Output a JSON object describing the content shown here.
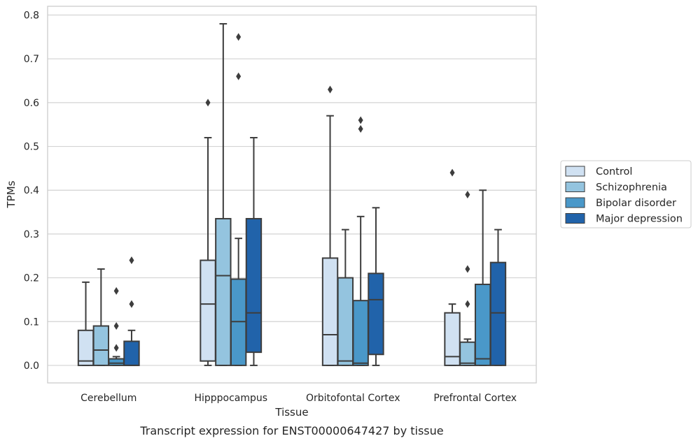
{
  "chart_data": {
    "type": "box",
    "caption": "Transcript expression for ENST00000647427 by tissue",
    "xlabel": "Tissue",
    "ylabel": "TPMs",
    "ylim": [
      -0.04,
      0.82
    ],
    "yticks": [
      "0.0",
      "0.1",
      "0.2",
      "0.3",
      "0.4",
      "0.5",
      "0.6",
      "0.7",
      "0.8"
    ],
    "grid": true,
    "legend_position": "right",
    "categories": [
      "Cerebellum",
      "Hipppocampus",
      "Orbitofontal Cortex",
      "Prefrontal Cortex"
    ],
    "series": [
      {
        "name": "Control",
        "color": "#d0e1f2",
        "boxes": [
          {
            "whislo": 0.0,
            "q1": 0.0,
            "med": 0.01,
            "q3": 0.08,
            "whishi": 0.19,
            "fliers": []
          },
          {
            "whislo": 0.0,
            "q1": 0.01,
            "med": 0.14,
            "q3": 0.24,
            "whishi": 0.52,
            "fliers": [
              0.6
            ]
          },
          {
            "whislo": 0.0,
            "q1": 0.0,
            "med": 0.07,
            "q3": 0.245,
            "whishi": 0.57,
            "fliers": [
              0.63
            ]
          },
          {
            "whislo": 0.0,
            "q1": 0.0,
            "med": 0.02,
            "q3": 0.12,
            "whishi": 0.14,
            "fliers": [
              0.44
            ]
          }
        ]
      },
      {
        "name": "Schizophrenia",
        "color": "#94c4df",
        "boxes": [
          {
            "whislo": 0.0,
            "q1": 0.0,
            "med": 0.035,
            "q3": 0.09,
            "whishi": 0.22,
            "fliers": []
          },
          {
            "whislo": 0.0,
            "q1": 0.0,
            "med": 0.205,
            "q3": 0.335,
            "whishi": 0.78,
            "fliers": []
          },
          {
            "whislo": 0.0,
            "q1": 0.0,
            "med": 0.01,
            "q3": 0.2,
            "whishi": 0.31,
            "fliers": []
          },
          {
            "whislo": 0.0,
            "q1": 0.0,
            "med": 0.005,
            "q3": 0.053,
            "whishi": 0.06,
            "fliers": [
              0.39,
              0.22,
              0.14
            ]
          }
        ]
      },
      {
        "name": "Bipolar disorder",
        "color": "#4a98c9",
        "boxes": [
          {
            "whislo": 0.0,
            "q1": 0.0,
            "med": 0.005,
            "q3": 0.015,
            "whishi": 0.02,
            "fliers": [
              0.17,
              0.09,
              0.04
            ]
          },
          {
            "whislo": 0.0,
            "q1": 0.0,
            "med": 0.1,
            "q3": 0.197,
            "whishi": 0.29,
            "fliers": [
              0.75,
              0.66
            ]
          },
          {
            "whislo": 0.0,
            "q1": 0.0,
            "med": 0.005,
            "q3": 0.148,
            "whishi": 0.34,
            "fliers": [
              0.56,
              0.54
            ]
          },
          {
            "whislo": 0.0,
            "q1": 0.0,
            "med": 0.015,
            "q3": 0.185,
            "whishi": 0.4,
            "fliers": []
          }
        ]
      },
      {
        "name": "Major depression",
        "color": "#2163aa",
        "boxes": [
          {
            "whislo": 0.0,
            "q1": 0.0,
            "med": 0.0,
            "q3": 0.055,
            "whishi": 0.08,
            "fliers": [
              0.24,
              0.14
            ]
          },
          {
            "whislo": 0.0,
            "q1": 0.03,
            "med": 0.12,
            "q3": 0.335,
            "whishi": 0.52,
            "fliers": []
          },
          {
            "whislo": 0.0,
            "q1": 0.025,
            "med": 0.15,
            "q3": 0.21,
            "whishi": 0.36,
            "fliers": []
          },
          {
            "whislo": 0.0,
            "q1": 0.0,
            "med": 0.12,
            "q3": 0.235,
            "whishi": 0.31,
            "fliers": []
          }
        ]
      }
    ]
  }
}
